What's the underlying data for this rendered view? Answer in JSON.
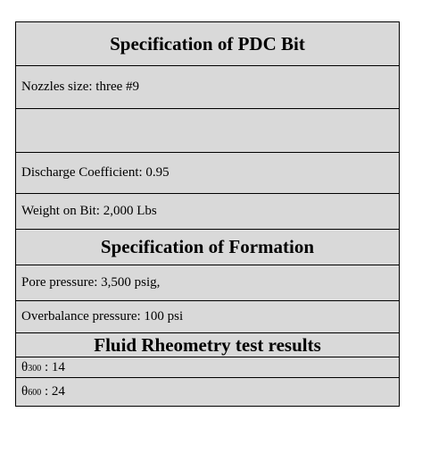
{
  "pdc_bit": {
    "title": "Specification of PDC Bit",
    "nozzles": "Nozzles size: three #9",
    "blank": "",
    "discharge": "Discharge Coefficient: 0.95",
    "weight": "Weight on Bit: 2,000 Lbs"
  },
  "formation": {
    "title": "Specification of Formation",
    "pore": "Pore pressure: 3,500 psig,",
    "overbalance": "Overbalance pressure: 100 psi"
  },
  "rheometry": {
    "title": "Fluid Rheometry test results",
    "theta_symbol": "θ",
    "r300": {
      "sub": "300",
      "value": " : 14"
    },
    "r600": {
      "sub": "600",
      "value": " : 24"
    }
  }
}
